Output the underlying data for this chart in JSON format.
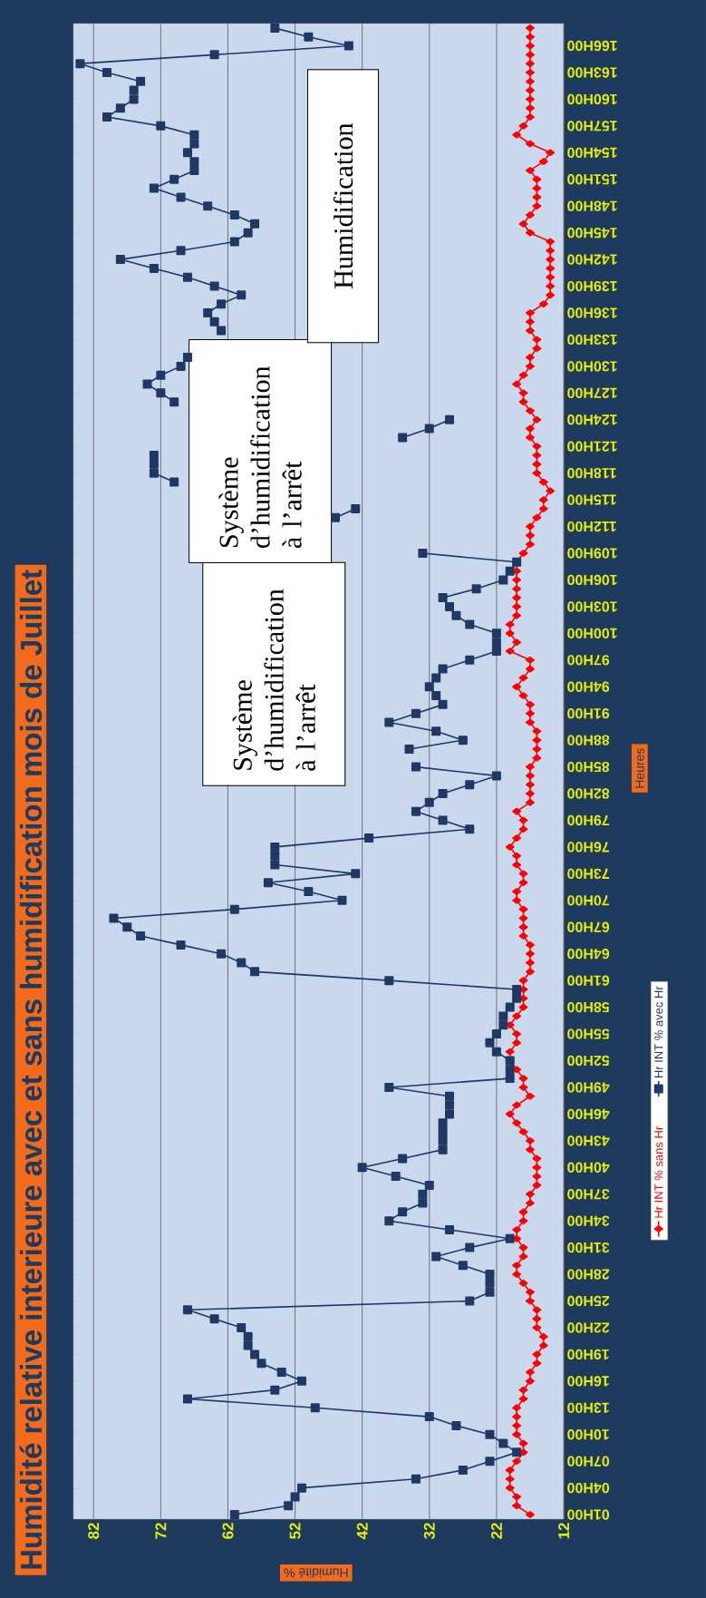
{
  "chart_data": {
    "type": "line",
    "orientation": "horizontal",
    "title": "Humidité relative interieure avec et sans humidification mois de Juillet",
    "xlabel": "Humidité %",
    "ylabel": "Heures",
    "annotations": [
      "Système d’humidification à l’arrêt",
      "Système d’humidification à l’arrêt",
      "Humidification"
    ],
    "categories": [
      null,
      null,
      "166H00",
      null,
      null,
      "163H00",
      null,
      null,
      "160H00",
      null,
      null,
      "157H00",
      null,
      null,
      "154H00",
      null,
      null,
      "151H00",
      null,
      null,
      "148H00",
      null,
      null,
      "145H00",
      null,
      null,
      "142H00",
      null,
      null,
      "139H00",
      null,
      null,
      "136H00",
      null,
      null,
      "133H00",
      null,
      null,
      "130H00",
      null,
      null,
      "127H00",
      null,
      null,
      "124H00",
      null,
      null,
      "121H00",
      null,
      null,
      "118H00",
      null,
      null,
      "115H00",
      null,
      null,
      "112H00",
      null,
      null,
      "109H00",
      null,
      null,
      "106H00",
      null,
      null,
      "103H00",
      null,
      null,
      "100H00",
      null,
      null,
      "97H00",
      null,
      null,
      "94H00",
      null,
      null,
      "91H00",
      null,
      null,
      "88H00",
      null,
      null,
      "85H00",
      null,
      null,
      "82H00",
      null,
      null,
      "79H00",
      null,
      null,
      "76H00",
      null,
      null,
      "73H00",
      null,
      null,
      "70H00",
      null,
      null,
      "67H00",
      null,
      null,
      "64H00",
      null,
      null,
      "61H00",
      null,
      null,
      "58H00",
      null,
      null,
      "55H00",
      null,
      null,
      "52H00",
      null,
      null,
      "49H00",
      null,
      null,
      "46H00",
      null,
      null,
      "43H00",
      null,
      null,
      "40H00",
      null,
      null,
      "37H00",
      null,
      null,
      "34H00",
      null,
      null,
      "31H00",
      null,
      null,
      "28H00",
      null,
      null,
      "25H00",
      null,
      null,
      "22H00",
      null,
      null,
      "19H00",
      null,
      null,
      "16H00",
      null,
      null,
      "13H00",
      null,
      null,
      "10H00",
      null,
      null,
      "07H00",
      null,
      null,
      "04H00",
      null,
      null,
      "01H00"
    ],
    "series": [
      {
        "name": "Hr INT % sans Hr",
        "color": "#ff0000",
        "marker": "diamond",
        "values": [
          17,
          17,
          17,
          17,
          17,
          17,
          17,
          17,
          17,
          17,
          17,
          18,
          19,
          17,
          14,
          15,
          17,
          16,
          16,
          16,
          16,
          17,
          18,
          17,
          14,
          14,
          14,
          14,
          14,
          14,
          14,
          15,
          17,
          17,
          17,
          16,
          16,
          17,
          17,
          18,
          19,
          18,
          18,
          17,
          16,
          17,
          17,
          16,
          16,
          16,
          16,
          15,
          14,
          15,
          15,
          16,
          17,
          17,
          17,
          18,
          19,
          19,
          19,
          19,
          19,
          19,
          19,
          20,
          20,
          19,
          20,
          17,
          17,
          18,
          19,
          18,
          17,
          17,
          17,
          16,
          16,
          16,
          16,
          17,
          17,
          17,
          17,
          17,
          19,
          18,
          18,
          19,
          20,
          19,
          19,
          18,
          18,
          19,
          19,
          18,
          18,
          18,
          18,
          17,
          17,
          17,
          17,
          18,
          18,
          18,
          18,
          19,
          20,
          19,
          19,
          20,
          20,
          19,
          18,
          18,
          17,
          19,
          20,
          19,
          18,
          17,
          17,
          16,
          16,
          16,
          16,
          17,
          17,
          18,
          18,
          19,
          19,
          18,
          18,
          19,
          19,
          18,
          17,
          17,
          16,
          16,
          16,
          15,
          15,
          16,
          16,
          17,
          17,
          18,
          18,
          19,
          19,
          19,
          19,
          18,
          18,
          19,
          20,
          20,
          20,
          19,
          19,
          17
        ]
      },
      {
        "name": "Hr INT % avec Hr",
        "color": "#1f3864",
        "marker": "square",
        "values": [
          55,
          50,
          44,
          64,
          84,
          80,
          75,
          76,
          76,
          78,
          80,
          72,
          67,
          67,
          68,
          67,
          67,
          70,
          73,
          69,
          65,
          61,
          58,
          59,
          61,
          69,
          78,
          73,
          68,
          64,
          60,
          63,
          65,
          64,
          63,
          null,
          null,
          68,
          69,
          72,
          74,
          72,
          70,
          null,
          29,
          32,
          36,
          null,
          73,
          73,
          73,
          70,
          null,
          null,
          43,
          46,
          null,
          null,
          null,
          33,
          19,
          20,
          21,
          25,
          30,
          29,
          28,
          26,
          22,
          22,
          22,
          26,
          30,
          31,
          32,
          31,
          30,
          34,
          38,
          31,
          27,
          35,
          null,
          34,
          22,
          26,
          30,
          32,
          34,
          30,
          26,
          41,
          55,
          55,
          55,
          43,
          56,
          50,
          45,
          61,
          79,
          77,
          75,
          69,
          63,
          60,
          58,
          38,
          19,
          19,
          20,
          21,
          21,
          22,
          23,
          22,
          20,
          20,
          20,
          38,
          29,
          29,
          29,
          30,
          30,
          30,
          30,
          36,
          42,
          37,
          32,
          33,
          33,
          36,
          38,
          29,
          20,
          26,
          31,
          27,
          23,
          23,
          23,
          26,
          68,
          64,
          60,
          59,
          59,
          58,
          57,
          54,
          51,
          55,
          68,
          49,
          32,
          28,
          23,
          21,
          19,
          23,
          27,
          34,
          51,
          52,
          53,
          61
        ]
      }
    ],
    "xlim": [
      85,
      12
    ],
    "xticks": [
      82,
      72,
      62,
      52,
      42,
      32,
      22,
      12
    ],
    "grid": "x",
    "legend": "right"
  }
}
